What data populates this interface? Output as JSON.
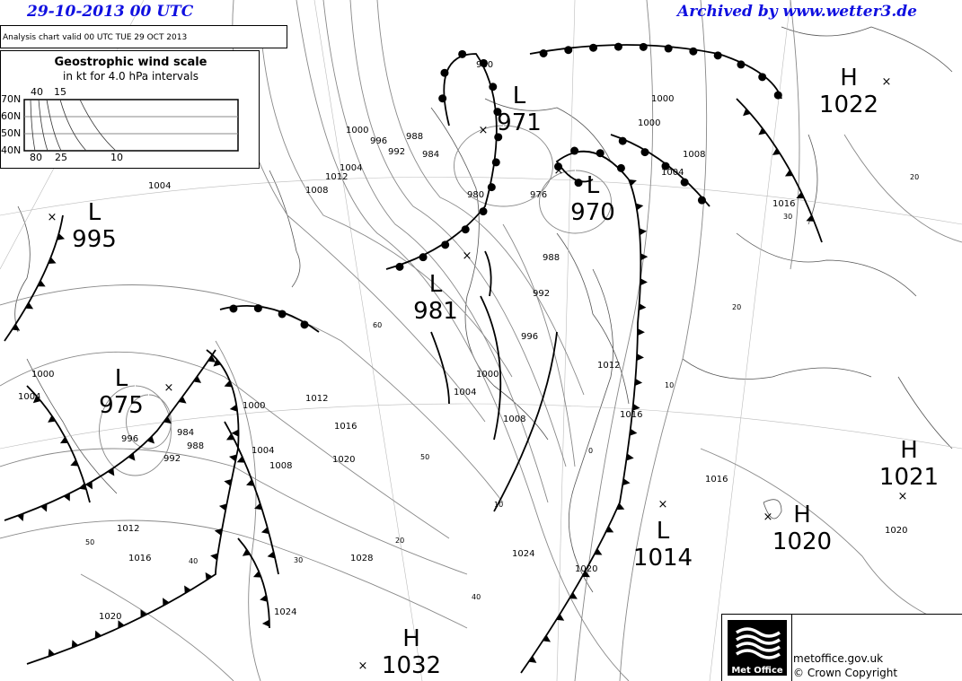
{
  "header": {
    "datetime": "29-10-2013  00 UTC",
    "archive": "Archived by www.wetter3.de"
  },
  "valid_text": "Analysis chart  valid 00 UTC TUE 29  OCT 2013",
  "wind_scale": {
    "title": "Geostrophic wind scale",
    "subtitle": "in kt for 4.0 hPa intervals",
    "lat_labels": [
      "70N",
      "60N",
      "50N",
      "40N"
    ],
    "top_labels": [
      "40",
      "15"
    ],
    "bottom_labels": [
      "80",
      "25",
      "10"
    ]
  },
  "pressure_centres": [
    {
      "type": "L",
      "value": "995"
    },
    {
      "type": "L",
      "value": "975"
    },
    {
      "type": "L",
      "value": "981"
    },
    {
      "type": "L",
      "value": "971"
    },
    {
      "type": "L",
      "value": "970"
    },
    {
      "type": "H",
      "value": "1022"
    },
    {
      "type": "H",
      "value": "1021"
    },
    {
      "type": "H",
      "value": "1020"
    },
    {
      "type": "L",
      "value": "1014"
    },
    {
      "type": "H",
      "value": "1032"
    }
  ],
  "isobar_labels": [
    "980",
    "984",
    "988",
    "992",
    "996",
    "1000",
    "1004",
    "1008",
    "1012",
    "1004",
    "1000",
    "976",
    "980",
    "988",
    "992",
    "996",
    "1000",
    "1004",
    "1008",
    "1012",
    "1016",
    "1000",
    "1004",
    "984",
    "988",
    "992",
    "996",
    "1000",
    "1004",
    "1008",
    "1012",
    "1016",
    "1020",
    "1012",
    "1016",
    "1020",
    "1024",
    "1028",
    "1016",
    "1020",
    "1024",
    "1020",
    "1016",
    "1008",
    "1000",
    "1004"
  ],
  "wind_labels": [
    "60",
    "50",
    "50",
    "40",
    "30",
    "20",
    "10",
    "40",
    "20",
    "10",
    "30",
    "20",
    "0"
  ],
  "colors": {
    "header": "#1010e0",
    "isobar": "#888888",
    "front": "#000000"
  },
  "logo": {
    "brand": "Met Office",
    "url": "metoffice.gov.uk",
    "copyright": "© Crown Copyright"
  }
}
